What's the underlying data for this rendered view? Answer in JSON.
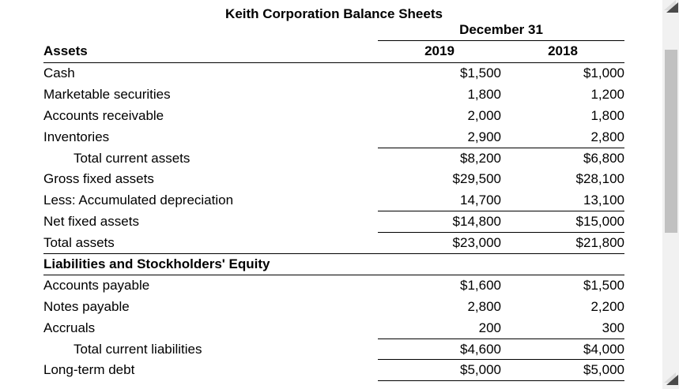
{
  "title": "Keith Corporation Balance Sheets",
  "table": {
    "date_header": "December 31",
    "columns": {
      "label_header": "Assets",
      "year_1": "2019",
      "year_2": "2018"
    },
    "rows": [
      {
        "label": "Cash",
        "v2019": "$1,500",
        "v2018": "$1,000"
      },
      {
        "label": "Marketable securities",
        "v2019": "1,800",
        "v2018": "1,200"
      },
      {
        "label": "Accounts receivable",
        "v2019": "2,000",
        "v2018": "1,800"
      },
      {
        "label": "Inventories",
        "v2019": "2,900",
        "v2018": "2,800",
        "line_below_nums": true
      },
      {
        "label": "Total current assets",
        "v2019": "$8,200",
        "v2018": "$6,800",
        "indent": true
      },
      {
        "label": "Gross fixed assets",
        "v2019": "$29,500",
        "v2018": "$28,100"
      },
      {
        "label": "Less: Accumulated depreciation",
        "v2019": "14,700",
        "v2018": "13,100",
        "line_below_nums": true
      },
      {
        "label": "Net fixed assets",
        "v2019": "$14,800",
        "v2018": "$15,000",
        "line_below_nums": true
      },
      {
        "label": "Total assets",
        "v2019": "$23,000",
        "v2018": "$21,800",
        "line_below_full": true
      },
      {
        "label": "Liabilities and Stockholders' Equity",
        "section": true,
        "line_below_full": true
      },
      {
        "label": "Accounts payable",
        "v2019": "$1,600",
        "v2018": "$1,500"
      },
      {
        "label": "Notes payable",
        "v2019": "2,800",
        "v2018": "2,200"
      },
      {
        "label": "Accruals",
        "v2019": "200",
        "v2018": "300",
        "line_below_nums": true
      },
      {
        "label": "Total current liabilities",
        "v2019": "$4,600",
        "v2018": "$4,000",
        "indent": true,
        "line_below_nums": true
      },
      {
        "label": "Long-term debt",
        "v2019": "$5,000",
        "v2018": "$5,000",
        "line_below_nums": true
      }
    ]
  },
  "scrollbar": {
    "up_icon": "scroll-up-arrow-icon",
    "down_icon": "scroll-down-arrow-icon",
    "track_color": "#f1f1f1",
    "thumb_color": "#c1c1c1",
    "arrow_color": "#4a4a4a"
  },
  "colors": {
    "text": "#000000",
    "rule": "#000000",
    "background": "#ffffff"
  }
}
